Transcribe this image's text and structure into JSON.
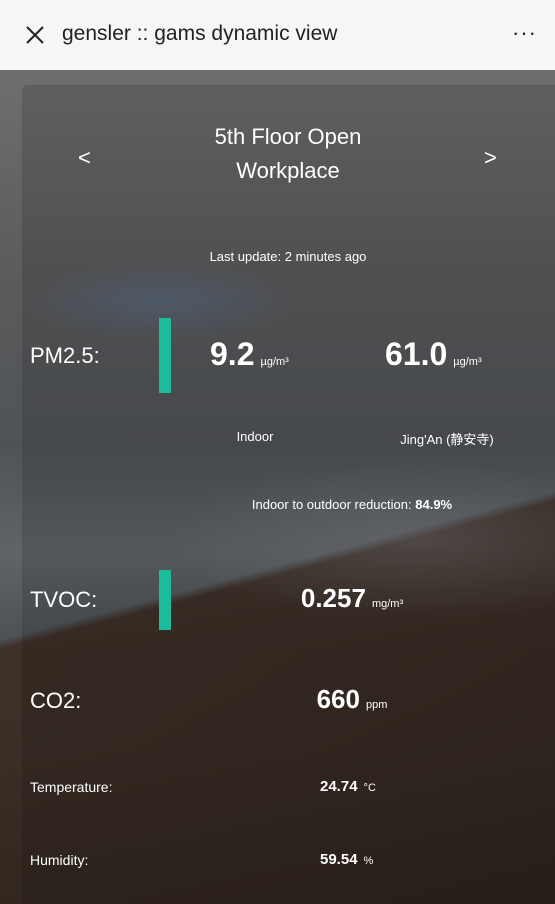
{
  "header": {
    "title": "gensler :: gams dynamic view"
  },
  "nav": {
    "prev": "<",
    "next": ">",
    "location": "5th Floor Open Workplace"
  },
  "last_update": "Last update: 2 minutes ago",
  "pm25": {
    "label": "PM2.5:",
    "indoor_value": "9.2",
    "indoor_unit": "µg/m³",
    "outdoor_value": "61.0",
    "outdoor_unit": "µg/m³",
    "indoor_label": "Indoor",
    "outdoor_label": "Jing'An (静安寺)"
  },
  "reduction": {
    "label": "Indoor to outdoor reduction:",
    "value": "84.9%"
  },
  "tvoc": {
    "label": "TVOC:",
    "value": "0.257",
    "unit": "mg/m³"
  },
  "co2": {
    "label": "CO2:",
    "value": "660",
    "unit": "ppm"
  },
  "temperature": {
    "label": "Temperature:",
    "value": "24.74",
    "unit": "°C"
  },
  "humidity": {
    "label": "Humidity:",
    "value": "59.54",
    "unit": "%"
  }
}
